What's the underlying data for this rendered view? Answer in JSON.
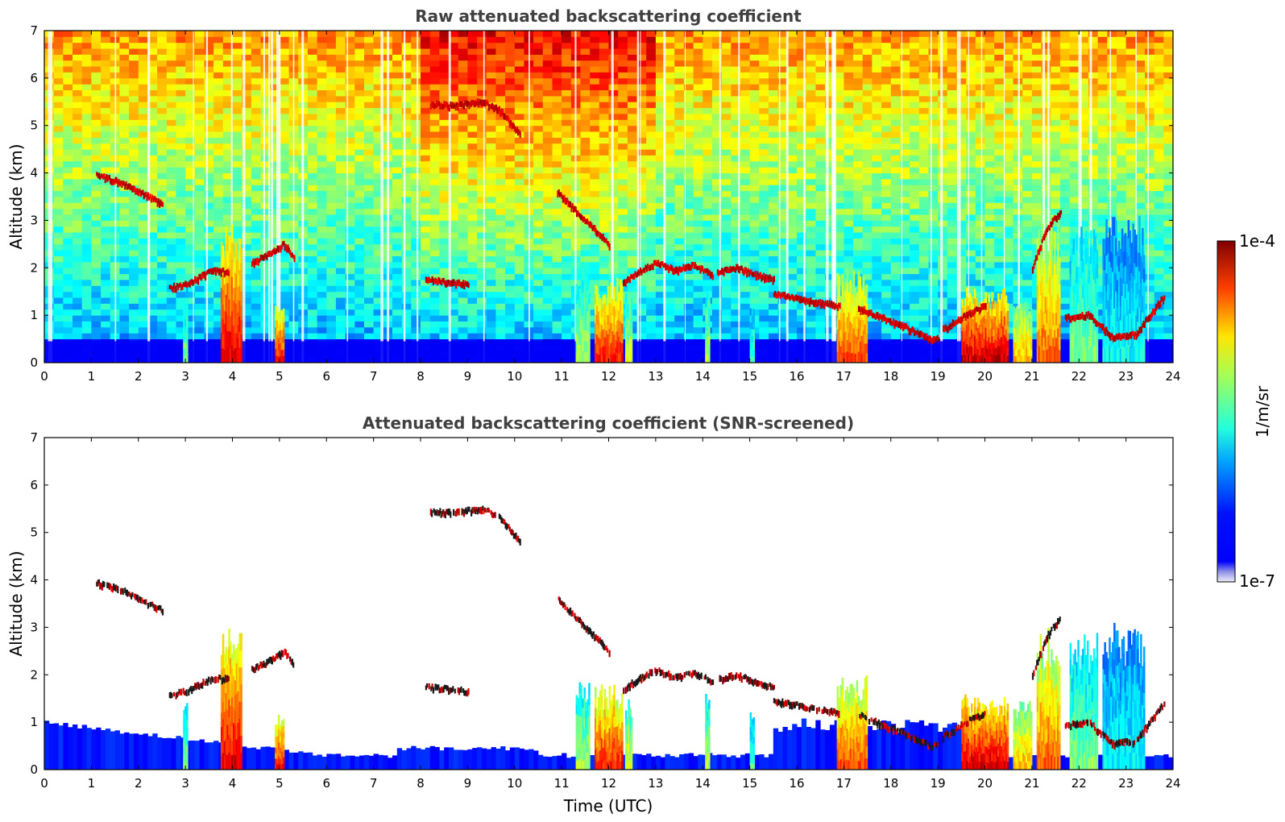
{
  "chart_data": [
    {
      "type": "heatmap",
      "title": "Raw attenuated backscattering coefficient",
      "xlabel": "",
      "ylabel": "Altitude (km)",
      "xlim": [
        0,
        24
      ],
      "ylim": [
        0,
        7
      ],
      "x_ticks": [
        0,
        1,
        2,
        3,
        4,
        5,
        6,
        7,
        8,
        9,
        10,
        11,
        12,
        13,
        14,
        15,
        16,
        17,
        18,
        19,
        20,
        21,
        22,
        23,
        24
      ],
      "y_ticks": [
        0,
        1,
        2,
        3,
        4,
        5,
        6,
        7
      ],
      "noise_level": 1.0,
      "layers": [
        {
          "x": [
            1.1,
            1.6,
            2.0,
            2.5
          ],
          "y": [
            3.95,
            3.8,
            3.6,
            3.35
          ]
        },
        {
          "x": [
            2.65,
            3.0,
            3.3,
            3.6,
            3.9
          ],
          "y": [
            1.58,
            1.65,
            1.8,
            1.95,
            1.9
          ]
        },
        {
          "x": [
            4.4,
            4.8,
            5.1,
            5.3
          ],
          "y": [
            2.1,
            2.3,
            2.5,
            2.2
          ]
        },
        {
          "x": [
            8.1,
            8.5,
            9.0
          ],
          "y": [
            1.75,
            1.7,
            1.65
          ]
        },
        {
          "x": [
            8.2,
            8.7,
            9.3,
            9.7,
            10.1
          ],
          "y": [
            5.45,
            5.42,
            5.5,
            5.3,
            4.8
          ]
        },
        {
          "x": [
            10.9,
            11.3,
            11.7,
            12.0
          ],
          "y": [
            3.6,
            3.2,
            2.8,
            2.5
          ]
        },
        {
          "x": [
            12.3,
            12.7,
            13.0,
            13.4,
            13.8,
            14.2
          ],
          "y": [
            1.7,
            1.95,
            2.1,
            1.95,
            2.05,
            1.85
          ]
        },
        {
          "x": [
            14.3,
            14.7,
            15.1,
            15.5
          ],
          "y": [
            1.9,
            2.0,
            1.85,
            1.75
          ]
        },
        {
          "x": [
            15.5,
            16.0,
            16.5,
            16.9
          ],
          "y": [
            1.45,
            1.35,
            1.25,
            1.2
          ]
        },
        {
          "x": [
            17.3,
            17.8,
            18.3,
            18.8,
            19.0
          ],
          "y": [
            1.15,
            0.95,
            0.75,
            0.5,
            0.5
          ]
        },
        {
          "x": [
            19.1,
            19.6,
            20.0
          ],
          "y": [
            0.7,
            1.0,
            1.2
          ]
        },
        {
          "x": [
            21.0,
            21.3,
            21.6
          ],
          "y": [
            2.0,
            2.8,
            3.2
          ]
        },
        {
          "x": [
            21.7,
            22.2,
            22.7,
            23.2,
            23.8
          ],
          "y": [
            0.95,
            1.0,
            0.55,
            0.6,
            1.4
          ]
        }
      ],
      "columns": [
        {
          "x0": 3.75,
          "x1": 4.2,
          "top": 3.0,
          "intensity": 0.9
        },
        {
          "x0": 4.9,
          "x1": 5.1,
          "top": 1.2,
          "intensity": 0.85
        },
        {
          "x0": 2.95,
          "x1": 3.05,
          "top": 1.6,
          "intensity": 0.5
        },
        {
          "x0": 11.3,
          "x1": 11.6,
          "top": 2.0,
          "intensity": 0.55
        },
        {
          "x0": 11.7,
          "x1": 12.3,
          "top": 1.8,
          "intensity": 0.85
        },
        {
          "x0": 12.35,
          "x1": 12.5,
          "top": 1.5,
          "intensity": 0.6
        },
        {
          "x0": 14.05,
          "x1": 14.15,
          "top": 1.9,
          "intensity": 0.55
        },
        {
          "x0": 15.0,
          "x1": 15.1,
          "top": 1.3,
          "intensity": 0.45
        },
        {
          "x0": 16.85,
          "x1": 17.5,
          "top": 2.0,
          "intensity": 0.8
        },
        {
          "x0": 19.5,
          "x1": 20.5,
          "top": 1.6,
          "intensity": 0.92
        },
        {
          "x0": 20.6,
          "x1": 21.0,
          "top": 1.5,
          "intensity": 0.7
        },
        {
          "x0": 21.1,
          "x1": 21.6,
          "top": 3.0,
          "intensity": 0.78
        },
        {
          "x0": 21.8,
          "x1": 22.4,
          "top": 2.9,
          "intensity": 0.5
        },
        {
          "x0": 22.5,
          "x1": 23.4,
          "top": 3.1,
          "intensity": 0.38
        }
      ]
    },
    {
      "type": "heatmap",
      "title": "Attenuated backscattering coefficient (SNR-screened)",
      "xlabel": "Time (UTC)",
      "ylabel": "Altitude (km)",
      "xlim": [
        0,
        24
      ],
      "ylim": [
        0,
        7
      ],
      "x_ticks": [
        0,
        1,
        2,
        3,
        4,
        5,
        6,
        7,
        8,
        9,
        10,
        11,
        12,
        13,
        14,
        15,
        16,
        17,
        18,
        19,
        20,
        21,
        22,
        23,
        24
      ],
      "y_ticks": [
        0,
        1,
        2,
        3,
        4,
        5,
        6,
        7
      ],
      "noise_level": 0.0,
      "layers": [
        {
          "x": [
            1.1,
            1.6,
            2.0,
            2.5
          ],
          "y": [
            3.95,
            3.8,
            3.6,
            3.35
          ]
        },
        {
          "x": [
            2.65,
            3.0,
            3.3,
            3.6,
            3.9
          ],
          "y": [
            1.58,
            1.65,
            1.8,
            1.95,
            1.9
          ]
        },
        {
          "x": [
            4.4,
            4.8,
            5.1,
            5.3
          ],
          "y": [
            2.1,
            2.3,
            2.5,
            2.2
          ]
        },
        {
          "x": [
            8.1,
            8.5,
            9.0
          ],
          "y": [
            1.75,
            1.7,
            1.65
          ]
        },
        {
          "x": [
            8.2,
            8.7,
            9.3,
            9.7,
            10.1
          ],
          "y": [
            5.45,
            5.42,
            5.5,
            5.3,
            4.8
          ]
        },
        {
          "x": [
            10.9,
            11.3,
            11.7,
            12.0
          ],
          "y": [
            3.6,
            3.2,
            2.8,
            2.5
          ]
        },
        {
          "x": [
            12.3,
            12.7,
            13.0,
            13.4,
            13.8,
            14.2
          ],
          "y": [
            1.7,
            1.95,
            2.1,
            1.95,
            2.05,
            1.85
          ]
        },
        {
          "x": [
            14.3,
            14.7,
            15.1,
            15.5
          ],
          "y": [
            1.9,
            2.0,
            1.85,
            1.75
          ]
        },
        {
          "x": [
            15.5,
            16.0,
            16.5,
            16.9
          ],
          "y": [
            1.45,
            1.35,
            1.25,
            1.2
          ]
        },
        {
          "x": [
            17.3,
            17.8,
            18.3,
            18.8,
            19.0
          ],
          "y": [
            1.15,
            0.95,
            0.75,
            0.5,
            0.5
          ]
        },
        {
          "x": [
            19.1,
            19.6,
            20.0
          ],
          "y": [
            0.7,
            1.0,
            1.2
          ]
        },
        {
          "x": [
            21.0,
            21.3,
            21.6
          ],
          "y": [
            2.0,
            2.8,
            3.2
          ]
        },
        {
          "x": [
            21.7,
            22.2,
            22.7,
            23.2,
            23.8
          ],
          "y": [
            0.95,
            1.0,
            0.55,
            0.6,
            1.4
          ]
        }
      ],
      "columns": [
        {
          "x0": 3.75,
          "x1": 4.2,
          "top": 3.0,
          "intensity": 0.9
        },
        {
          "x0": 4.9,
          "x1": 5.1,
          "top": 1.2,
          "intensity": 0.85
        },
        {
          "x0": 2.95,
          "x1": 3.05,
          "top": 1.6,
          "intensity": 0.5
        },
        {
          "x0": 11.3,
          "x1": 11.6,
          "top": 2.0,
          "intensity": 0.55
        },
        {
          "x0": 11.7,
          "x1": 12.3,
          "top": 1.8,
          "intensity": 0.85
        },
        {
          "x0": 12.35,
          "x1": 12.5,
          "top": 1.5,
          "intensity": 0.6
        },
        {
          "x0": 14.05,
          "x1": 14.15,
          "top": 1.9,
          "intensity": 0.55
        },
        {
          "x0": 15.0,
          "x1": 15.1,
          "top": 1.3,
          "intensity": 0.45
        },
        {
          "x0": 16.85,
          "x1": 17.5,
          "top": 2.0,
          "intensity": 0.8
        },
        {
          "x0": 19.5,
          "x1": 20.5,
          "top": 1.6,
          "intensity": 0.92
        },
        {
          "x0": 20.6,
          "x1": 21.0,
          "top": 1.5,
          "intensity": 0.7
        },
        {
          "x0": 21.1,
          "x1": 21.6,
          "top": 3.0,
          "intensity": 0.78
        },
        {
          "x0": 21.8,
          "x1": 22.4,
          "top": 2.9,
          "intensity": 0.5
        },
        {
          "x0": 22.5,
          "x1": 23.4,
          "top": 3.1,
          "intensity": 0.38
        }
      ]
    }
  ],
  "colorbar": {
    "label": "1/m/sr",
    "max_label": "1e-4",
    "min_label": "1e-7",
    "colormap": "jet",
    "range": [
      "1e-7",
      "1e-4"
    ]
  }
}
